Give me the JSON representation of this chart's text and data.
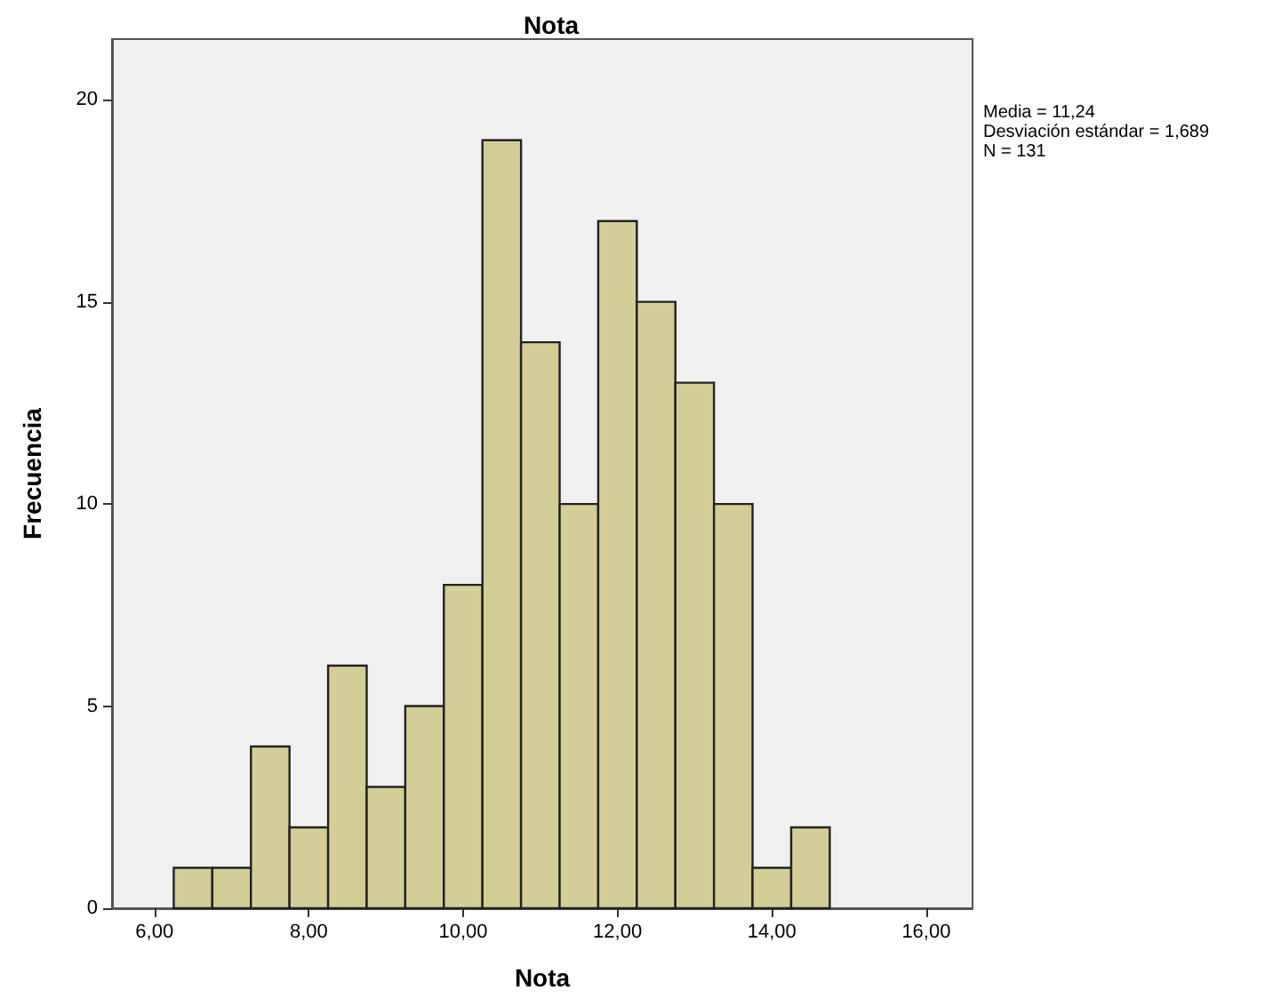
{
  "chart_data": {
    "type": "histogram",
    "title": "Nota",
    "xlabel": "Nota",
    "ylabel": "Frecuencia",
    "bins": [
      6.25,
      6.75,
      7.25,
      7.75,
      8.25,
      8.75,
      9.25,
      9.75,
      10.25,
      10.75,
      11.25,
      11.75,
      12.25,
      12.75,
      13.25,
      13.75,
      14.25,
      14.75
    ],
    "values": [
      1,
      1,
      4,
      2,
      6,
      3,
      5,
      8,
      19,
      14,
      10,
      17,
      15,
      13,
      10,
      1,
      2
    ],
    "color": "#d3ce97",
    "xlim": [
      5.45,
      16.6
    ],
    "xticks": [
      {
        "value": 6,
        "label": "6,00"
      },
      {
        "value": 8,
        "label": "8,00"
      },
      {
        "value": 10,
        "label": "10,00"
      },
      {
        "value": 12,
        "label": "12,00"
      },
      {
        "value": 14,
        "label": "14,00"
      },
      {
        "value": 16,
        "label": "16,00"
      }
    ],
    "ylim": [
      0,
      21.5
    ],
    "yticks": [
      0,
      5,
      10,
      15,
      20
    ],
    "grid": false,
    "annotations": [
      "Media = 11,24",
      "Desviación estándar = 1,689",
      "N = 131"
    ]
  }
}
